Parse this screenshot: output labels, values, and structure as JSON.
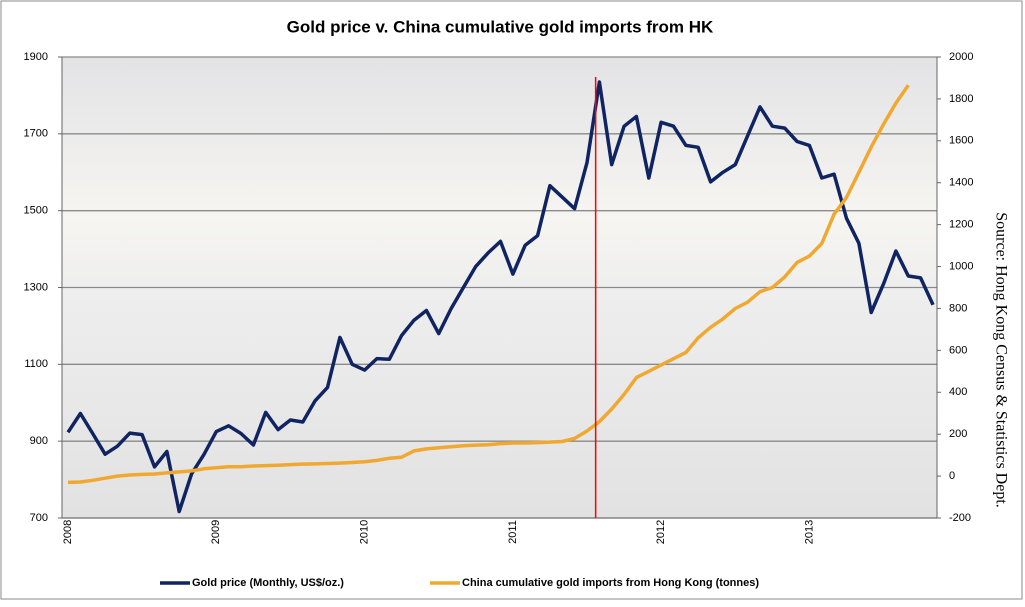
{
  "chart_data": {
    "type": "line",
    "title": "Gold price v. China cumulative gold imports from HK",
    "source": "Source: Hong Kong Census & Statistics Dept.",
    "categories": [
      "2008",
      null,
      null,
      null,
      null,
      null,
      null,
      null,
      null,
      null,
      null,
      null,
      "2009",
      null,
      null,
      null,
      null,
      null,
      null,
      null,
      null,
      null,
      null,
      null,
      "2010",
      null,
      null,
      null,
      null,
      null,
      null,
      null,
      null,
      null,
      null,
      null,
      "2011",
      null,
      null,
      null,
      null,
      null,
      null,
      null,
      null,
      null,
      null,
      null,
      "2012",
      null,
      null,
      null,
      null,
      null,
      null,
      null,
      null,
      null,
      null,
      null,
      "2013",
      null,
      null,
      null,
      null,
      null,
      null,
      null,
      null,
      null,
      null
    ],
    "series": [
      {
        "name": "Gold price (Monthly, US$/oz.)",
        "color": "#0f2461",
        "axis": "y",
        "values": [
          923,
          972,
          920,
          866,
          887,
          921,
          917,
          833,
          873,
          717,
          815,
          865,
          925,
          940,
          920,
          890,
          975,
          930,
          955,
          950,
          1005,
          1040,
          1170,
          1100,
          1085,
          1115,
          1113,
          1175,
          1215,
          1240,
          1180,
          1245,
          1300,
          1355,
          1390,
          1420,
          1335,
          1410,
          1435,
          1565,
          1535,
          1505,
          1625,
          1835,
          1620,
          1720,
          1745,
          1585,
          1730,
          1720,
          1670,
          1665,
          1575,
          1600,
          1620,
          1695,
          1770,
          1720,
          1715,
          1680,
          1670,
          1585,
          1595,
          1480,
          1415,
          1235,
          1310,
          1395,
          1330,
          1325,
          1255
        ]
      },
      {
        "name": "China cumulative gold imports from Hong Kong (tonnes)",
        "color": "#f0a830",
        "axis": "y2",
        "values": [
          -30,
          -28,
          -20,
          -10,
          0,
          5,
          8,
          10,
          15,
          20,
          25,
          35,
          40,
          45,
          45,
          48,
          50,
          52,
          55,
          57,
          58,
          60,
          62,
          65,
          68,
          75,
          85,
          90,
          120,
          130,
          135,
          140,
          145,
          148,
          150,
          155,
          158,
          158,
          160,
          162,
          165,
          180,
          215,
          260,
          320,
          390,
          470,
          500,
          530,
          560,
          590,
          660,
          710,
          750,
          800,
          830,
          880,
          900,
          950,
          1020,
          1050,
          1110,
          1250,
          1330,
          1450,
          1570,
          1680,
          1780,
          1865,
          null,
          null
        ]
      }
    ],
    "ylim": [
      700,
      1900
    ],
    "yticks": [
      700,
      900,
      1100,
      1300,
      1500,
      1700,
      1900
    ],
    "y2lim": [
      -200,
      2000
    ],
    "y2ticks": [
      -200,
      0,
      200,
      400,
      600,
      800,
      1000,
      1200,
      1400,
      1600,
      1800,
      2000
    ],
    "grid": true,
    "legend": "bottom",
    "reference_line": {
      "index": 42.7,
      "color": "#ff0000"
    }
  }
}
